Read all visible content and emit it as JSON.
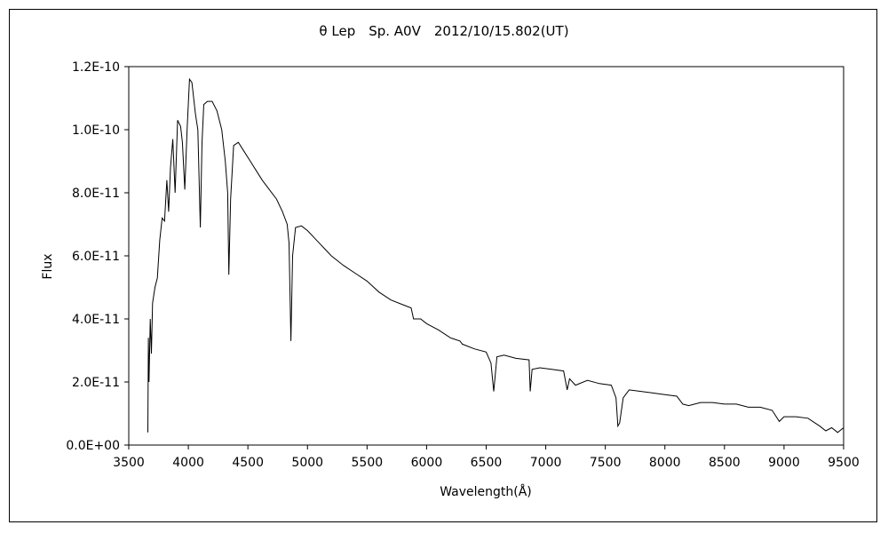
{
  "chart_data": {
    "type": "line",
    "title": "θ Lep　Sp. A0V　2012/10/15.802(UT)",
    "xlabel": "Wavelength(Å)",
    "ylabel": "Flux",
    "xlim": [
      3500,
      9500
    ],
    "ylim": [
      0,
      1.2e-10
    ],
    "grid": false,
    "legend": "none",
    "x_ticks": [
      3500,
      4000,
      4500,
      5000,
      5500,
      6000,
      6500,
      7000,
      7500,
      8000,
      8500,
      9000,
      9500
    ],
    "x_tick_labels": [
      "3500",
      "4000",
      "4500",
      "5000",
      "5500",
      "6000",
      "6500",
      "7000",
      "7500",
      "8000",
      "8500",
      "9000",
      "9500"
    ],
    "y_ticks": [
      0,
      2e-11,
      4e-11,
      6e-11,
      8e-11,
      1e-10,
      1.2e-10
    ],
    "y_tick_labels": [
      "0.0E+00",
      "2.0E-11",
      "4.0E-11",
      "6.0E-11",
      "8.0E-11",
      "1.0E-10",
      "1.2E-10"
    ],
    "series": [
      {
        "color": "#000000",
        "points": [
          [
            3660,
            4e-12
          ],
          [
            3665,
            3.4e-11
          ],
          [
            3670,
            2e-11
          ],
          [
            3680,
            4e-11
          ],
          [
            3690,
            2.9e-11
          ],
          [
            3700,
            4.5e-11
          ],
          [
            3720,
            5e-11
          ],
          [
            3740,
            5.3e-11
          ],
          [
            3760,
            6.5e-11
          ],
          [
            3780,
            7.2e-11
          ],
          [
            3800,
            7.1e-11
          ],
          [
            3820,
            8.4e-11
          ],
          [
            3835,
            7.4e-11
          ],
          [
            3850,
            8.8e-11
          ],
          [
            3870,
            9.7e-11
          ],
          [
            3889,
            8e-11
          ],
          [
            3910,
            1.03e-10
          ],
          [
            3935,
            1.01e-10
          ],
          [
            3950,
            9.6e-11
          ],
          [
            3970,
            8.1e-11
          ],
          [
            3990,
            1e-10
          ],
          [
            4010,
            1.16e-10
          ],
          [
            4030,
            1.15e-10
          ],
          [
            4060,
            1.05e-10
          ],
          [
            4080,
            1e-10
          ],
          [
            4101,
            6.9e-11
          ],
          [
            4115,
            9.6e-11
          ],
          [
            4130,
            1.08e-10
          ],
          [
            4160,
            1.09e-10
          ],
          [
            4200,
            1.09e-10
          ],
          [
            4240,
            1.06e-10
          ],
          [
            4280,
            1e-10
          ],
          [
            4310,
            9e-11
          ],
          [
            4330,
            8e-11
          ],
          [
            4340,
            5.4e-11
          ],
          [
            4355,
            7.8e-11
          ],
          [
            4380,
            9.5e-11
          ],
          [
            4420,
            9.6e-11
          ],
          [
            4470,
            9.3e-11
          ],
          [
            4520,
            9e-11
          ],
          [
            4570,
            8.7e-11
          ],
          [
            4620,
            8.4e-11
          ],
          [
            4680,
            8.1e-11
          ],
          [
            4740,
            7.8e-11
          ],
          [
            4790,
            7.4e-11
          ],
          [
            4830,
            7e-11
          ],
          [
            4845,
            6.4e-11
          ],
          [
            4861,
            3.3e-11
          ],
          [
            4875,
            6e-11
          ],
          [
            4900,
            6.9e-11
          ],
          [
            4950,
            6.95e-11
          ],
          [
            5000,
            6.8e-11
          ],
          [
            5050,
            6.6e-11
          ],
          [
            5100,
            6.4e-11
          ],
          [
            5150,
            6.2e-11
          ],
          [
            5200,
            6e-11
          ],
          [
            5300,
            5.7e-11
          ],
          [
            5400,
            5.45e-11
          ],
          [
            5500,
            5.2e-11
          ],
          [
            5600,
            4.85e-11
          ],
          [
            5700,
            4.6e-11
          ],
          [
            5800,
            4.45e-11
          ],
          [
            5870,
            4.35e-11
          ],
          [
            5890,
            4e-11
          ],
          [
            5950,
            4e-11
          ],
          [
            6000,
            3.85e-11
          ],
          [
            6100,
            3.65e-11
          ],
          [
            6200,
            3.4e-11
          ],
          [
            6280,
            3.3e-11
          ],
          [
            6300,
            3.2e-11
          ],
          [
            6400,
            3.05e-11
          ],
          [
            6500,
            2.95e-11
          ],
          [
            6540,
            2.6e-11
          ],
          [
            6563,
            1.7e-11
          ],
          [
            6590,
            2.8e-11
          ],
          [
            6650,
            2.85e-11
          ],
          [
            6750,
            2.75e-11
          ],
          [
            6860,
            2.7e-11
          ],
          [
            6870,
            1.7e-11
          ],
          [
            6885,
            2.4e-11
          ],
          [
            6950,
            2.45e-11
          ],
          [
            7050,
            2.4e-11
          ],
          [
            7150,
            2.35e-11
          ],
          [
            7180,
            1.75e-11
          ],
          [
            7200,
            2.1e-11
          ],
          [
            7250,
            1.9e-11
          ],
          [
            7350,
            2.05e-11
          ],
          [
            7450,
            1.95e-11
          ],
          [
            7550,
            1.9e-11
          ],
          [
            7590,
            1.5e-11
          ],
          [
            7605,
            6e-12
          ],
          [
            7620,
            7e-12
          ],
          [
            7650,
            1.5e-11
          ],
          [
            7700,
            1.75e-11
          ],
          [
            7800,
            1.7e-11
          ],
          [
            7900,
            1.65e-11
          ],
          [
            8000,
            1.6e-11
          ],
          [
            8100,
            1.55e-11
          ],
          [
            8150,
            1.3e-11
          ],
          [
            8200,
            1.25e-11
          ],
          [
            8300,
            1.35e-11
          ],
          [
            8400,
            1.35e-11
          ],
          [
            8500,
            1.3e-11
          ],
          [
            8600,
            1.3e-11
          ],
          [
            8700,
            1.2e-11
          ],
          [
            8800,
            1.2e-11
          ],
          [
            8900,
            1.1e-11
          ],
          [
            8960,
            7.5e-12
          ],
          [
            9000,
            9e-12
          ],
          [
            9100,
            9e-12
          ],
          [
            9200,
            8.5e-12
          ],
          [
            9300,
            6e-12
          ],
          [
            9350,
            4.5e-12
          ],
          [
            9400,
            5.5e-12
          ],
          [
            9450,
            4e-12
          ],
          [
            9500,
            5.5e-12
          ]
        ]
      }
    ]
  }
}
